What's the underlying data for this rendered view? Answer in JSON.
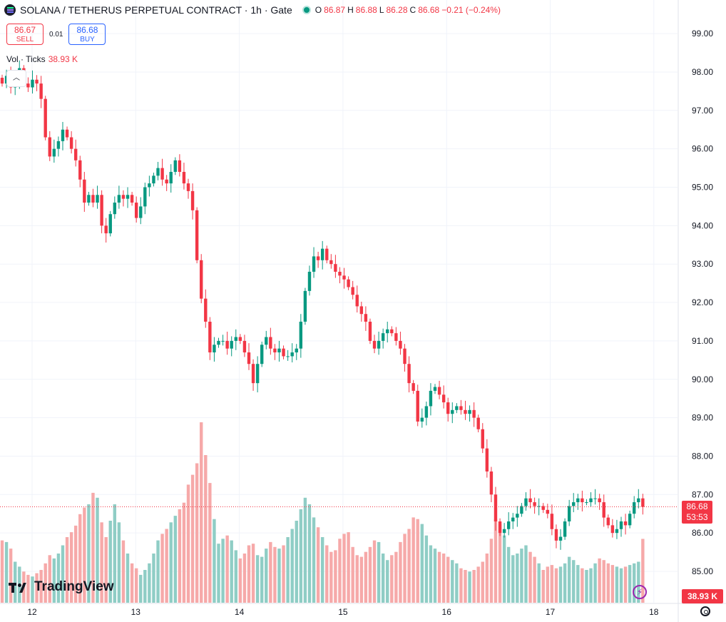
{
  "header": {
    "title": "SOLANA / TETHERUS PERPETUAL CONTRACT · 1h · Gate",
    "ohlc": [
      {
        "key": "O",
        "value": "86.87"
      },
      {
        "key": "H",
        "value": "86.88"
      },
      {
        "key": "L",
        "value": "86.28"
      },
      {
        "key": "C",
        "value": "86.68"
      }
    ],
    "change": "−0.21 (−0.24%)"
  },
  "trade": {
    "sell_price": "86.67",
    "sell_label": "SELL",
    "spread": "0.01",
    "buy_price": "86.68",
    "buy_label": "BUY"
  },
  "volume_legend": {
    "label": "Vol · Ticks",
    "value": "38.93 K"
  },
  "price_tag": {
    "price": "86.68",
    "countdown": "53:53"
  },
  "volume_tag": "38.93 K",
  "branding": "TradingView",
  "colors": {
    "up": "#089981",
    "down": "#f23645",
    "up_vol": "#8fcdc5",
    "down_vol": "#f6a9a9",
    "grid": "#f0f3fa"
  },
  "chart_data": {
    "type": "candlestick",
    "timeframe": "1h",
    "y_ticks": [
      "85.00",
      "86.00",
      "87.00",
      "88.00",
      "89.00",
      "90.00",
      "91.00",
      "92.00",
      "93.00",
      "94.00",
      "95.00",
      "96.00",
      "97.00",
      "98.00",
      "99.00"
    ],
    "ylim": [
      84.55,
      99.35
    ],
    "x_ticks": [
      "12",
      "13",
      "14",
      "15",
      "16",
      "17",
      "18"
    ],
    "last_price": 86.68,
    "closes": [
      97.7,
      97.9,
      97.6,
      97.8,
      98.1,
      97.7,
      97.6,
      97.8,
      97.7,
      97.3,
      96.3,
      95.8,
      96.0,
      96.2,
      96.5,
      96.3,
      96.0,
      95.7,
      95.2,
      94.6,
      94.8,
      94.6,
      94.8,
      94.0,
      93.8,
      94.3,
      94.6,
      94.8,
      94.7,
      94.8,
      94.6,
      94.2,
      94.5,
      95.0,
      95.1,
      95.3,
      95.5,
      95.2,
      95.1,
      95.4,
      95.7,
      95.4,
      95.1,
      94.9,
      94.4,
      93.1,
      92.1,
      91.5,
      90.7,
      90.9,
      91.0,
      91.0,
      90.8,
      91.0,
      91.1,
      91.0,
      90.7,
      90.4,
      89.9,
      90.4,
      90.9,
      91.1,
      90.8,
      90.7,
      90.8,
      90.6,
      90.6,
      90.7,
      90.8,
      91.5,
      92.3,
      92.8,
      93.2,
      93.1,
      93.4,
      93.1,
      93.0,
      92.8,
      92.7,
      92.6,
      92.4,
      92.2,
      91.9,
      91.7,
      91.5,
      91.0,
      90.8,
      91.0,
      91.2,
      91.3,
      91.2,
      91.0,
      90.8,
      90.4,
      89.9,
      89.7,
      88.9,
      89.0,
      89.3,
      89.7,
      89.8,
      89.6,
      89.4,
      89.1,
      89.2,
      89.3,
      89.2,
      89.1,
      89.2,
      89.0,
      88.7,
      88.2,
      87.6,
      87.0,
      86.3,
      86.0,
      86.1,
      86.3,
      86.4,
      86.5,
      86.7,
      86.9,
      86.8,
      86.7,
      86.7,
      86.6,
      86.5,
      86.1,
      85.8,
      85.9,
      86.3,
      86.7,
      86.8,
      86.9,
      86.8,
      86.8,
      86.9,
      86.9,
      86.8,
      86.4,
      86.2,
      86.0,
      86.1,
      86.3,
      86.2,
      86.5,
      86.8,
      86.9,
      86.68
    ],
    "volume_ticks_k": [
      38,
      37,
      33,
      25,
      22,
      19,
      17,
      16,
      18,
      20,
      24,
      29,
      27,
      30,
      35,
      40,
      43,
      47,
      54,
      58,
      60,
      67,
      64,
      49,
      40,
      50,
      60,
      49,
      38,
      30,
      24,
      21,
      17,
      20,
      24,
      30,
      38,
      42,
      45,
      49,
      53,
      57,
      61,
      72,
      78,
      85,
      110,
      90,
      73,
      51,
      36,
      39,
      41,
      38,
      32,
      27,
      30,
      35,
      36,
      29,
      28,
      33,
      37,
      34,
      33,
      35,
      40,
      45,
      50,
      57,
      64,
      60,
      52,
      46,
      40,
      35,
      31,
      32,
      39,
      42,
      43,
      34,
      29,
      28,
      31,
      34,
      38,
      37,
      30,
      26,
      29,
      31,
      37,
      42,
      45,
      52,
      51,
      48,
      41,
      35,
      33,
      31,
      30,
      28,
      26,
      24,
      21,
      20,
      19,
      20,
      22,
      25,
      30,
      39,
      51,
      48,
      41,
      34,
      29,
      30,
      33,
      35,
      31,
      28,
      24,
      20,
      22,
      23,
      21,
      22,
      24,
      28,
      26,
      23,
      21,
      20,
      21,
      24,
      27,
      26,
      24,
      23,
      22,
      21,
      22,
      23,
      24,
      25,
      38.93
    ]
  }
}
